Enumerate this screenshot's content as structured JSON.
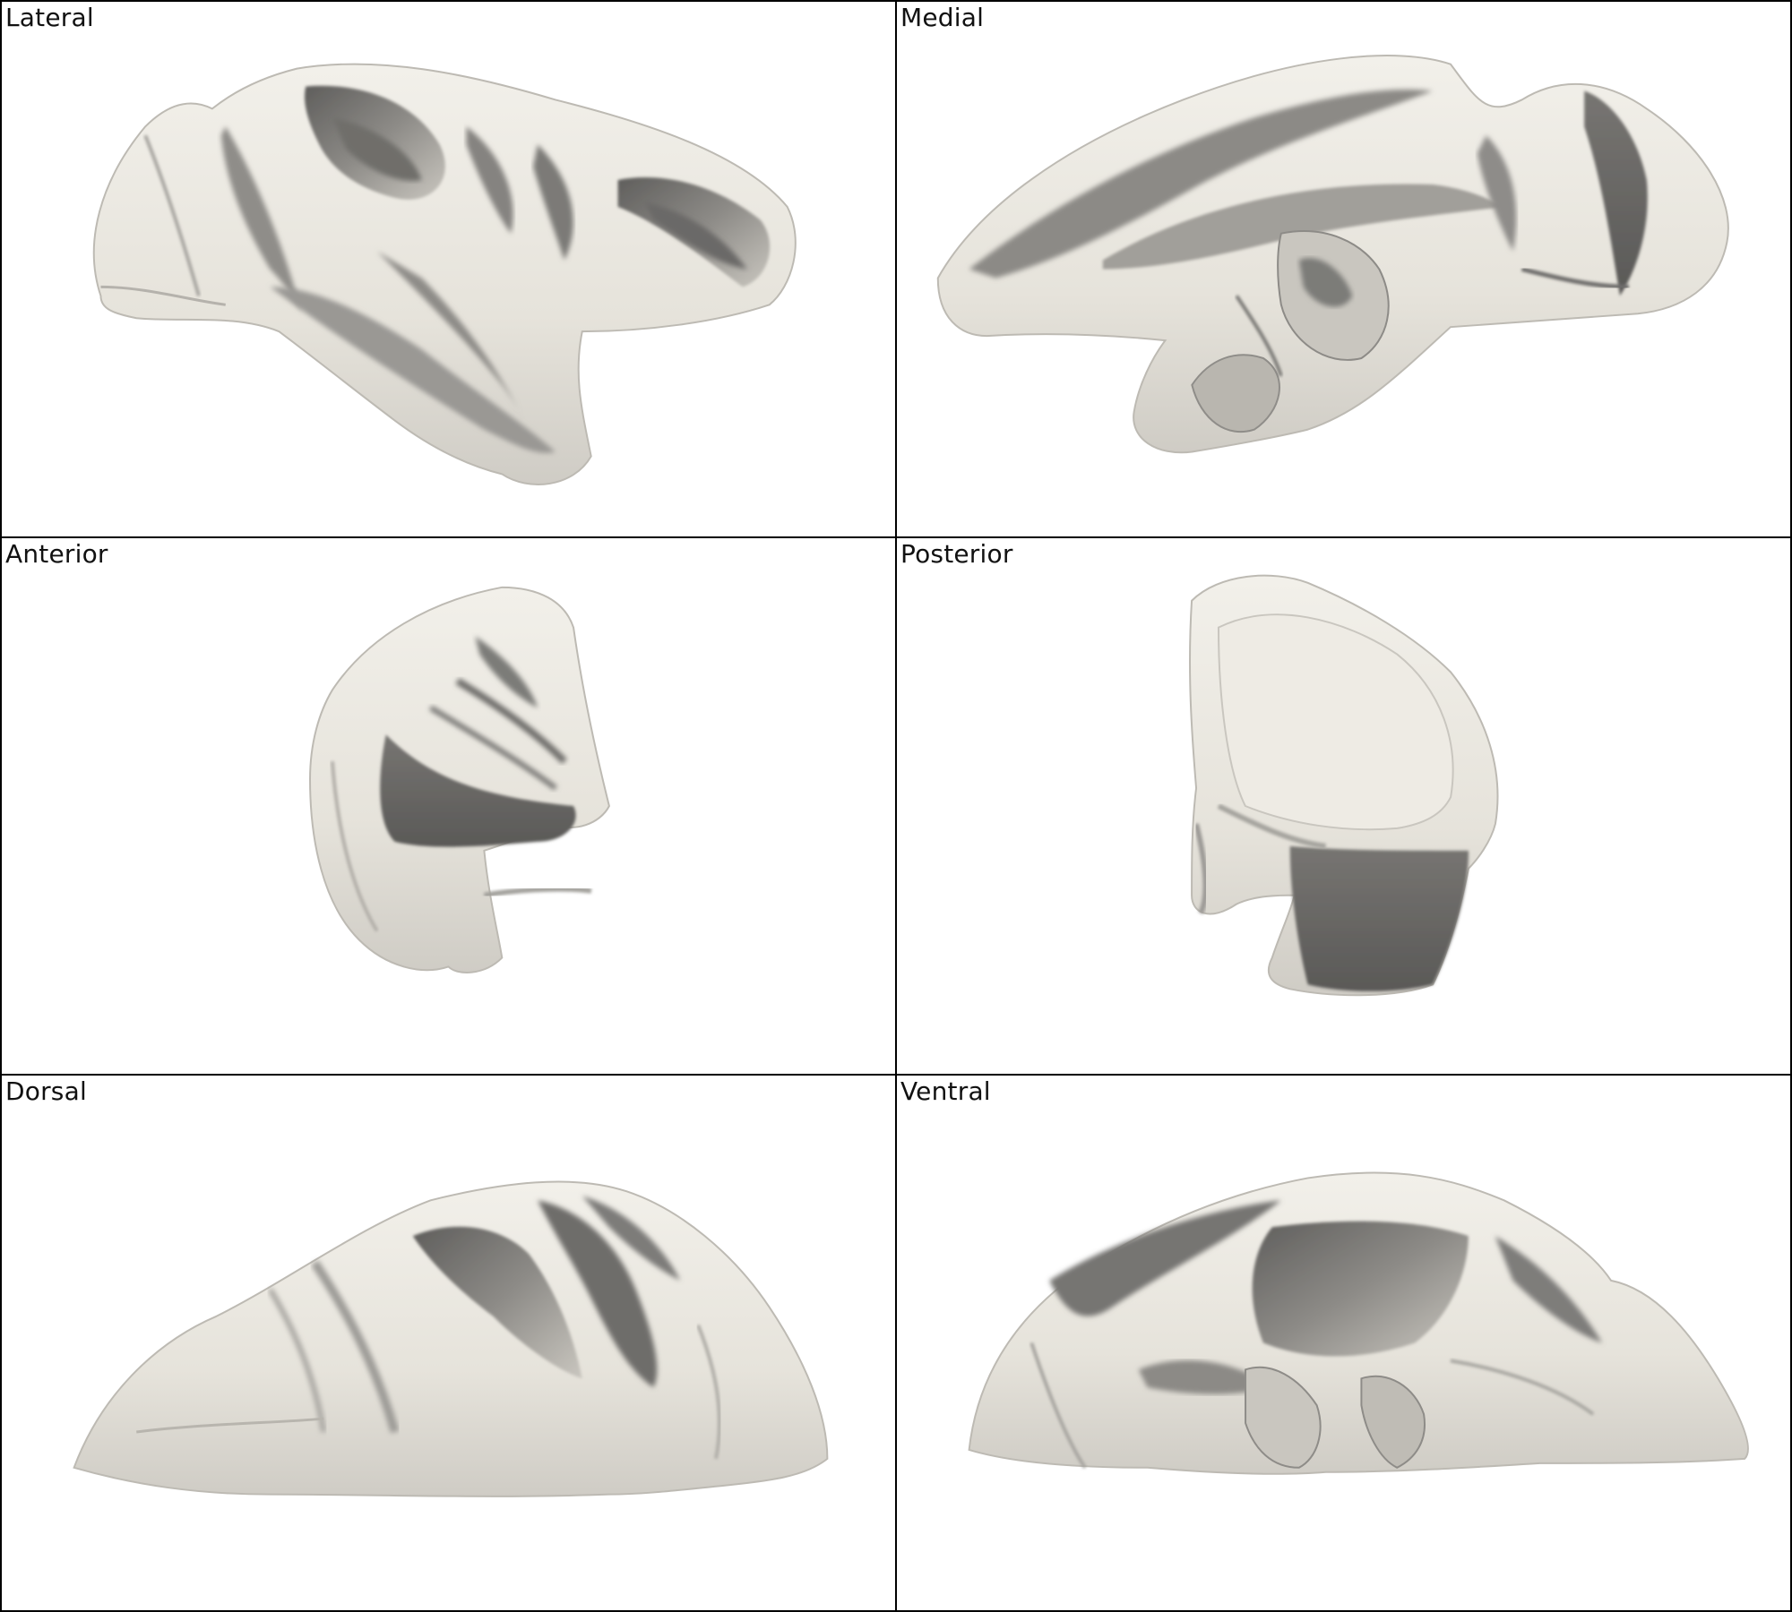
{
  "panels": [
    {
      "label": "Lateral"
    },
    {
      "label": "Medial"
    },
    {
      "label": "Anterior"
    },
    {
      "label": "Posterior"
    },
    {
      "label": "Dorsal"
    },
    {
      "label": "Ventral"
    }
  ],
  "colors": {
    "surface": "#ece9e1",
    "shade_light": "#d4d1ca",
    "shade_mid": "#9d9b97",
    "shade_dark": "#6b6a68",
    "border": "#000000",
    "background": "#ffffff"
  }
}
